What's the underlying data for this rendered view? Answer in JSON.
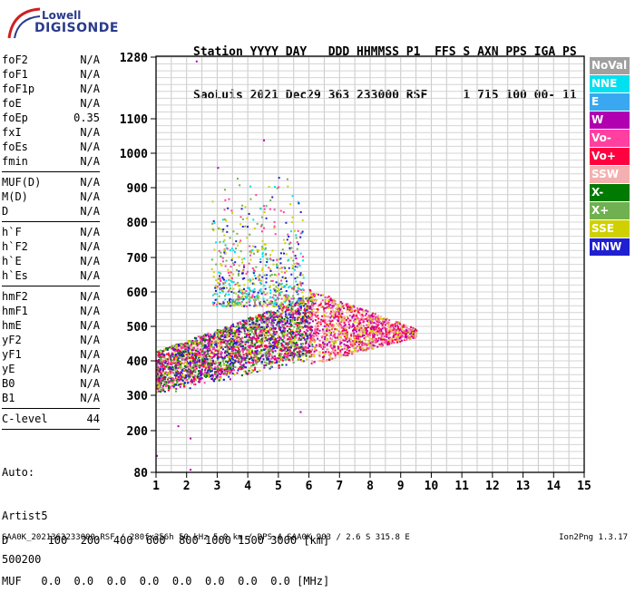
{
  "logo": {
    "line1": "Lowell",
    "line2": "DIGISONDE"
  },
  "header": {
    "line1": "Station YYYY DAY   DDD HHMMSS P1  FFS S AXN PPS IGA PS",
    "line2": "SaoLuis 2021 Dec29 363 233000 RSF     1 715 100 00- 11"
  },
  "params": {
    "group1": [
      {
        "name": "foF2",
        "value": "N/A"
      },
      {
        "name": "foF1",
        "value": "N/A"
      },
      {
        "name": "foF1p",
        "value": "N/A"
      },
      {
        "name": "foE",
        "value": "N/A"
      },
      {
        "name": "foEp",
        "value": "0.35"
      },
      {
        "name": "fxI",
        "value": "N/A"
      },
      {
        "name": "foEs",
        "value": "N/A"
      },
      {
        "name": "fmin",
        "value": "N/A"
      }
    ],
    "group2": [
      {
        "name": "MUF(D)",
        "value": "N/A"
      },
      {
        "name": "M(D)",
        "value": "N/A"
      },
      {
        "name": "D",
        "value": "N/A"
      }
    ],
    "group3": [
      {
        "name": "h`F",
        "value": "N/A"
      },
      {
        "name": "h`F2",
        "value": "N/A"
      },
      {
        "name": "h`E",
        "value": "N/A"
      },
      {
        "name": "h`Es",
        "value": "N/A"
      }
    ],
    "group4": [
      {
        "name": "hmF2",
        "value": "N/A"
      },
      {
        "name": "hmF1",
        "value": "N/A"
      },
      {
        "name": "hmE",
        "value": "N/A"
      },
      {
        "name": "yF2",
        "value": "N/A"
      },
      {
        "name": "yF1",
        "value": "N/A"
      },
      {
        "name": "yE",
        "value": "N/A"
      },
      {
        "name": "B0",
        "value": "N/A"
      },
      {
        "name": "B1",
        "value": "N/A"
      }
    ],
    "group5": [
      {
        "name": "C-level",
        "value": "44"
      }
    ]
  },
  "auto": {
    "line1": "Auto:",
    "line2": "Artist5",
    "line3": "500200"
  },
  "bottom": {
    "d_line": "D      100  200  400  600  800 1000 1500 3000 [km]",
    "muf_line": "MUF   0.0  0.0  0.0  0.0  0.0  0.0  0.0  0.0 [MHz]"
  },
  "footer": "SAA0K_2021363233000.RSF / 280fx256h 50 kHz 5.0 km / DPS-4 SAA0K 903 / 2.6 S 315.8 E",
  "version": "Ion2Png 1.3.17",
  "legend": [
    {
      "label": "NoVal",
      "color": "#a0a0a0"
    },
    {
      "label": "NNE",
      "color": "#00e0f0"
    },
    {
      "label": "E",
      "color": "#3aa8f0"
    },
    {
      "label": "W",
      "color": "#b000b0"
    },
    {
      "label": "Vo-",
      "color": "#ff40a0"
    },
    {
      "label": "Vo+",
      "color": "#ff0040"
    },
    {
      "label": "SSW",
      "color": "#f4b0b0"
    },
    {
      "label": "X-",
      "color": "#007a00"
    },
    {
      "label": "X+",
      "color": "#70b050"
    },
    {
      "label": "SSE",
      "color": "#d0d000"
    },
    {
      "label": "NNW",
      "color": "#2020d0"
    }
  ],
  "chart_data": {
    "type": "scatter",
    "title": "",
    "xlabel": "",
    "ylabel": "",
    "x_ticks": [
      1,
      2,
      3,
      4,
      5,
      6,
      7,
      8,
      9,
      10,
      11,
      12,
      13,
      14,
      15
    ],
    "y_ticks": [
      80,
      200,
      300,
      400,
      500,
      600,
      700,
      800,
      900,
      1000,
      1100,
      1280
    ],
    "xlim": [
      1,
      15
    ],
    "ylim": [
      80,
      1280
    ],
    "y_scale": "nonlinear",
    "grid": true,
    "legend_position": "right",
    "clusters": [
      {
        "name": "Main echo trace",
        "x_range": [
          1.0,
          6.1
        ],
        "y_range": [
          300,
          620
        ],
        "colors": [
          "#ff0040",
          "#ff40a0",
          "#2020d0",
          "#b000b0",
          "#007a00",
          "#70b050",
          "#d0d000"
        ],
        "density": "high"
      },
      {
        "name": "Upper scatter",
        "x_range": [
          2.8,
          5.8
        ],
        "y_range": [
          600,
          960
        ],
        "colors": [
          "#d0d000",
          "#70b050",
          "#00e0f0",
          "#ff40a0",
          "#2020d0"
        ],
        "density": "low"
      },
      {
        "name": "Extended echoes",
        "x_range": [
          6.0,
          9.5
        ],
        "y_range": [
          380,
          600
        ],
        "colors": [
          "#ff0040",
          "#ff40a0",
          "#b000b0",
          "#f4b0b0",
          "#d0d000"
        ],
        "density": "medium"
      }
    ]
  }
}
